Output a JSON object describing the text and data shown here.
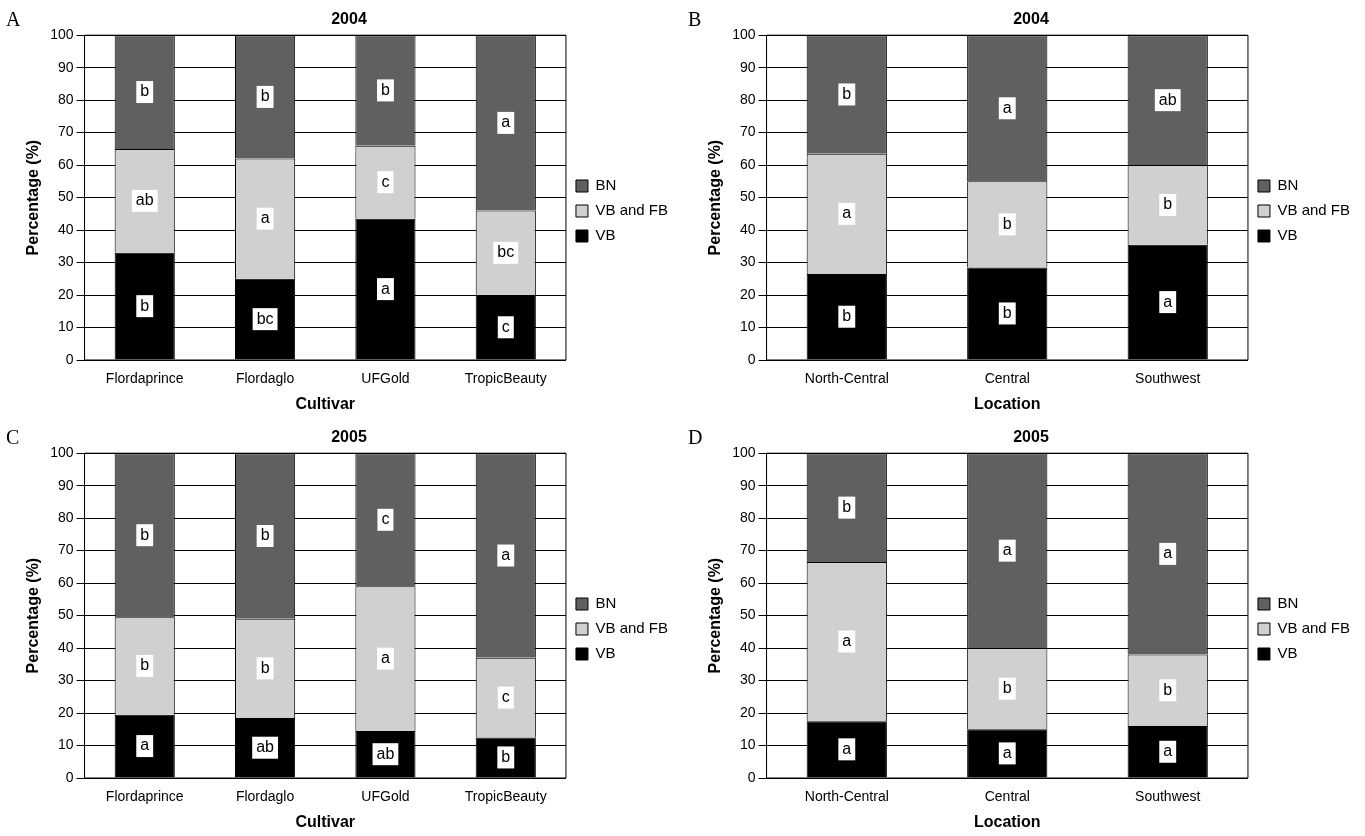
{
  "chart_data": [
    {
      "type": "bar",
      "stacked": true,
      "title": "2004",
      "xlabel": "Cultivar",
      "ylabel": "Percentage (%)",
      "annotations": [
        "A"
      ],
      "categories": [
        "Flordaprince",
        "Flordaglo",
        "UFGold",
        "TropicBeauty"
      ],
      "ylim": [
        0,
        100
      ],
      "yticks": [
        0,
        10,
        20,
        30,
        40,
        50,
        60,
        70,
        80,
        90,
        100
      ],
      "grid": "y",
      "legend": "right",
      "series": [
        {
          "name": "VB",
          "color": "#000000",
          "values": [
            33,
            25,
            43.5,
            20
          ],
          "value_labels": [
            "b",
            "bc",
            "a",
            "c"
          ]
        },
        {
          "name": "VB and FB",
          "color": "#d0d0d0",
          "values": [
            32,
            37,
            22.5,
            26
          ],
          "value_labels": [
            "ab",
            "a",
            "c",
            "bc"
          ]
        },
        {
          "name": "BN",
          "color": "#606060",
          "values": [
            35,
            38,
            34,
            54
          ],
          "value_labels": [
            "b",
            "b",
            "b",
            "a"
          ]
        }
      ]
    },
    {
      "type": "bar",
      "stacked": true,
      "title": "2004",
      "xlabel": "Location",
      "ylabel": "Percentage (%)",
      "annotations": [
        "B"
      ],
      "categories": [
        "North-Central",
        "Central",
        "Southwest"
      ],
      "ylim": [
        0,
        100
      ],
      "yticks": [
        0,
        10,
        20,
        30,
        40,
        50,
        60,
        70,
        80,
        90,
        100
      ],
      "grid": "y",
      "legend": "right",
      "series": [
        {
          "name": "VB",
          "color": "#000000",
          "values": [
            26.5,
            28.5,
            35.5
          ],
          "value_labels": [
            "b",
            "b",
            "a"
          ]
        },
        {
          "name": "VB and FB",
          "color": "#d0d0d0",
          "values": [
            37,
            26.5,
            24.5
          ],
          "value_labels": [
            "a",
            "b",
            "b"
          ]
        },
        {
          "name": "BN",
          "color": "#606060",
          "values": [
            36.5,
            45,
            40
          ],
          "value_labels": [
            "b",
            "a",
            "ab"
          ]
        }
      ]
    },
    {
      "type": "bar",
      "stacked": true,
      "title": "2005",
      "xlabel": "Cultivar",
      "ylabel": "Percentage (%)",
      "annotations": [
        "C"
      ],
      "categories": [
        "Flordaprince",
        "Flordaglo",
        "UFGold",
        "TropicBeauty"
      ],
      "ylim": [
        0,
        100
      ],
      "yticks": [
        0,
        10,
        20,
        30,
        40,
        50,
        60,
        70,
        80,
        90,
        100
      ],
      "grid": "y",
      "legend": "right",
      "series": [
        {
          "name": "VB",
          "color": "#000000",
          "values": [
            19.5,
            18.5,
            14.5,
            12.5
          ],
          "value_labels": [
            "a",
            "ab",
            "ab",
            "b"
          ]
        },
        {
          "name": "VB and FB",
          "color": "#d0d0d0",
          "values": [
            30,
            30.5,
            44.5,
            24.5
          ],
          "value_labels": [
            "b",
            "b",
            "a",
            "c"
          ]
        },
        {
          "name": "BN",
          "color": "#606060",
          "values": [
            50.5,
            51,
            41,
            63
          ],
          "value_labels": [
            "b",
            "b",
            "c",
            "a"
          ]
        }
      ]
    },
    {
      "type": "bar",
      "stacked": true,
      "title": "2005",
      "xlabel": "Location",
      "ylabel": "Percentage (%)",
      "annotations": [
        "D"
      ],
      "categories": [
        "North-Central",
        "Central",
        "Southwest"
      ],
      "ylim": [
        0,
        100
      ],
      "yticks": [
        0,
        10,
        20,
        30,
        40,
        50,
        60,
        70,
        80,
        90,
        100
      ],
      "grid": "y",
      "legend": "right",
      "series": [
        {
          "name": "VB",
          "color": "#000000",
          "values": [
            17.5,
            15,
            16
          ],
          "value_labels": [
            "a",
            "a",
            "a"
          ]
        },
        {
          "name": "VB and FB",
          "color": "#d0d0d0",
          "values": [
            49,
            25,
            22
          ],
          "value_labels": [
            "a",
            "b",
            "b"
          ]
        },
        {
          "name": "BN",
          "color": "#606060",
          "values": [
            33.5,
            60,
            62
          ],
          "value_labels": [
            "b",
            "a",
            "a"
          ]
        }
      ]
    }
  ]
}
